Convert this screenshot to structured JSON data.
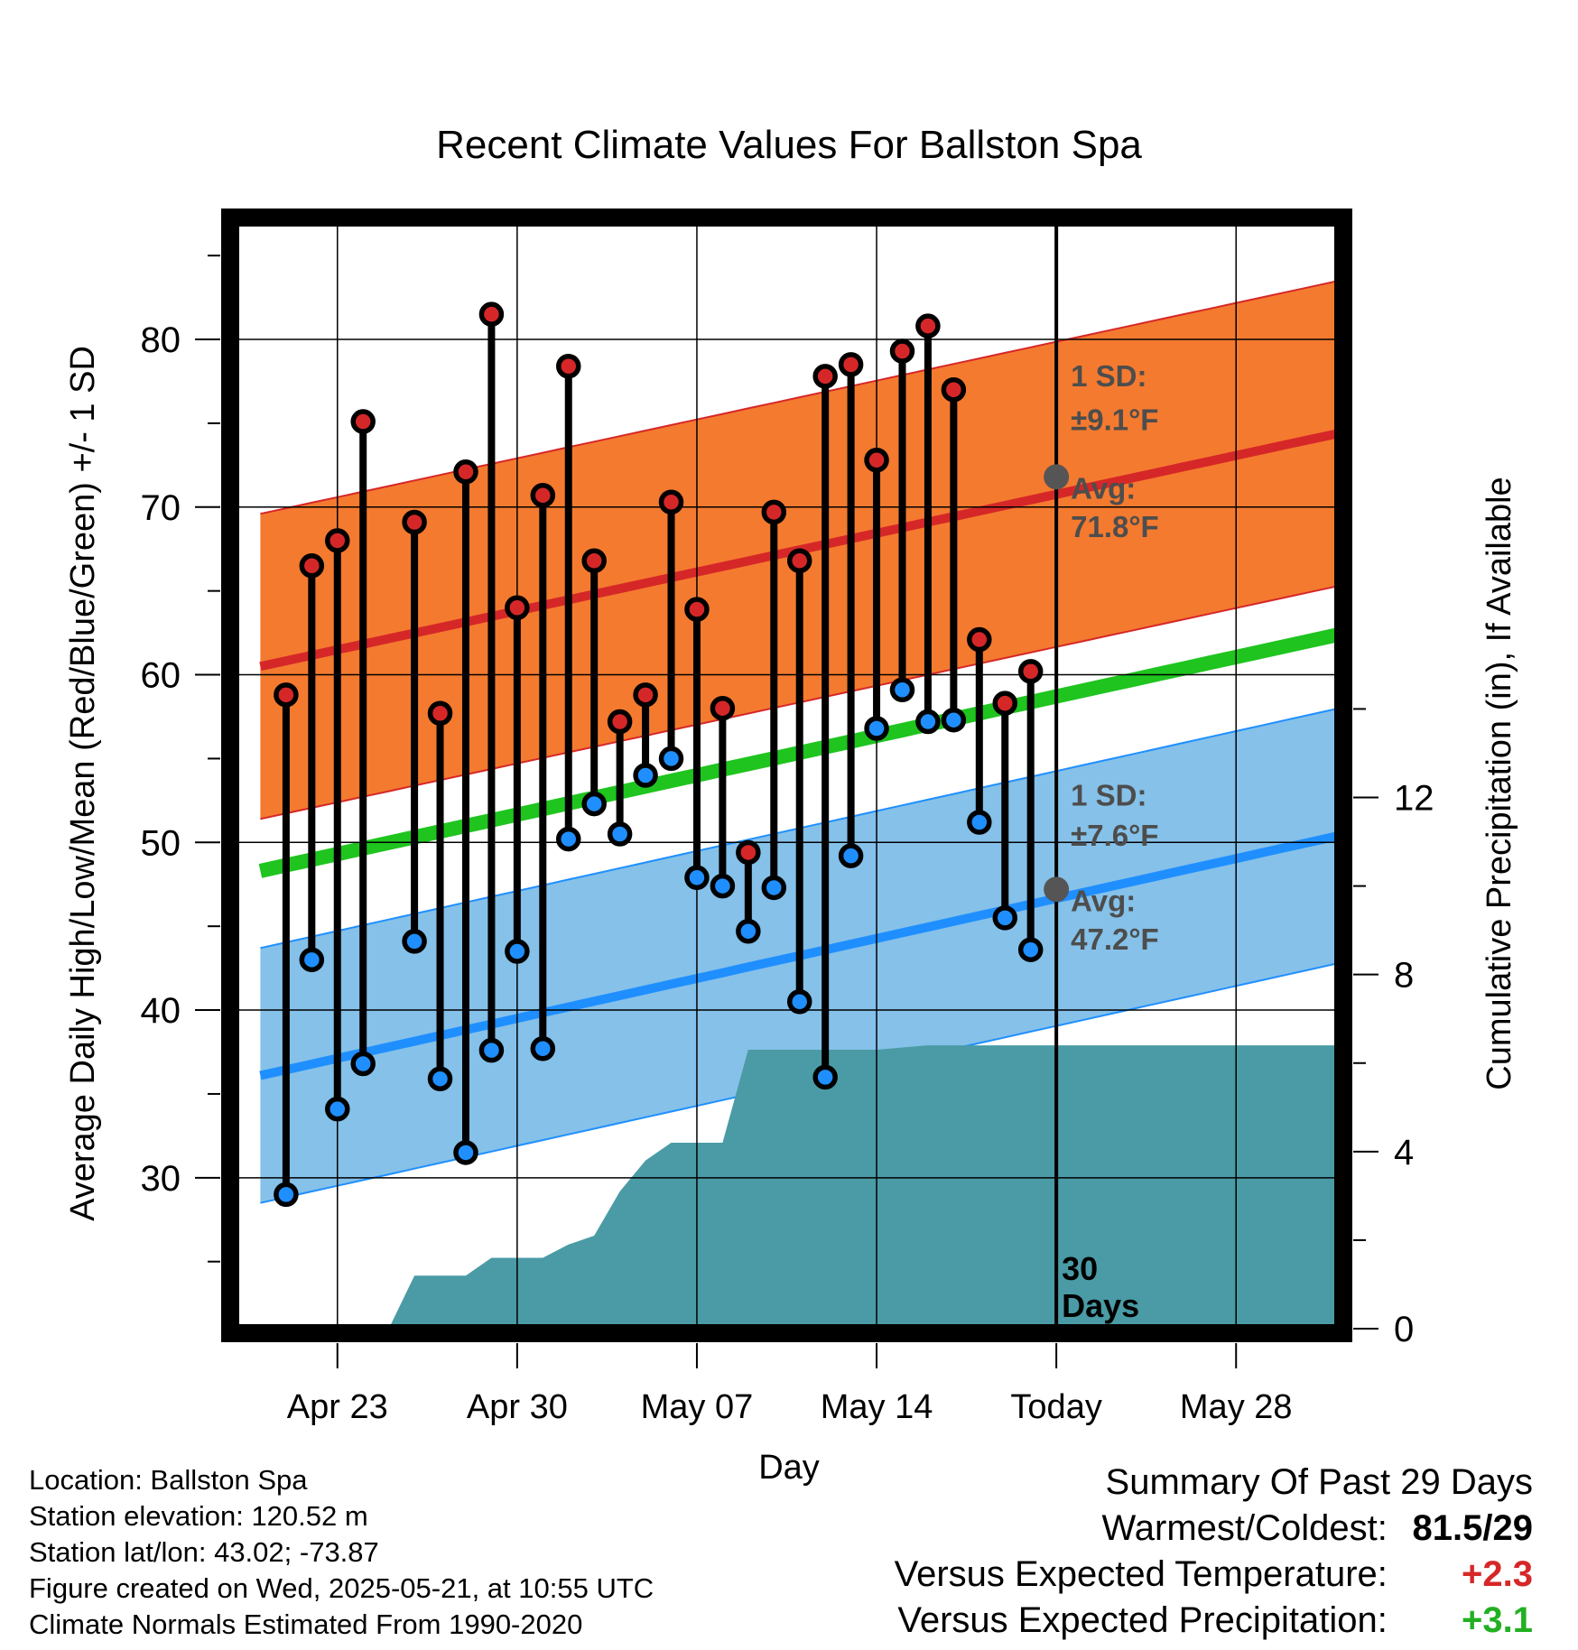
{
  "chart_data": {
    "type": "line",
    "title": "Recent Climate Values For Ballston Spa",
    "xlabel": "Day",
    "ylabel": "Average Daily High/Low/Mean (Red/Blue/Green) +/- 1 SD",
    "y2label": "Cumulative Precipitation (in), If Available",
    "x_tick_labels": [
      "Apr 23",
      "Apr 30",
      "May 07",
      "May 14",
      "Today",
      "May 28"
    ],
    "y_ticks": [
      30,
      40,
      50,
      60,
      70,
      80
    ],
    "y2_ticks": [
      0,
      4,
      8,
      12
    ],
    "ylim": [
      21,
      87
    ],
    "y2lim": [
      0,
      25
    ],
    "xlim": [
      "2025-04-19",
      "2025-06-01"
    ],
    "grid": true,
    "today": "2025-05-21",
    "period_label": "30 Days",
    "normals": {
      "start": "2025-04-20",
      "end": "2025-06-01",
      "high_mean": [
        60.5,
        74.4
      ],
      "high_sd": 9.1,
      "low_mean": [
        36.1,
        50.4
      ],
      "low_sd": 7.6,
      "mean": [
        48.3,
        62.4
      ]
    },
    "annotations": {
      "high_sd_label": "1 SD:",
      "high_sd_value": "±9.1°F",
      "high_avg_label": "Avg:",
      "high_avg_value": "71.8°F",
      "low_sd_label": "1 SD:",
      "low_sd_value": "±7.6°F",
      "low_avg_label": "Avg:",
      "low_avg_value": "47.2°F"
    },
    "today_high_avg": 71.8,
    "today_low_avg": 47.2,
    "series": [
      {
        "name": "High",
        "color": "#d62728",
        "x": [
          "2025-04-21",
          "2025-04-22",
          "2025-04-23",
          "2025-04-24",
          "2025-04-26",
          "2025-04-27",
          "2025-04-28",
          "2025-04-29",
          "2025-04-30",
          "2025-05-01",
          "2025-05-02",
          "2025-05-03",
          "2025-05-04",
          "2025-05-05",
          "2025-05-06",
          "2025-05-07",
          "2025-05-08",
          "2025-05-09",
          "2025-05-10",
          "2025-05-11",
          "2025-05-12",
          "2025-05-13",
          "2025-05-14",
          "2025-05-15",
          "2025-05-16",
          "2025-05-17",
          "2025-05-18",
          "2025-05-19",
          "2025-05-20"
        ],
        "values": [
          58.8,
          66.5,
          68.0,
          75.1,
          69.1,
          57.7,
          72.1,
          81.5,
          64.0,
          70.7,
          78.4,
          66.8,
          57.2,
          58.8,
          70.3,
          63.9,
          58.0,
          49.4,
          69.7,
          66.8,
          77.8,
          78.5,
          72.8,
          79.3,
          80.8,
          77.0,
          62.1,
          58.3,
          60.2
        ]
      },
      {
        "name": "Low",
        "color": "#1f8fff",
        "x": [
          "2025-04-21",
          "2025-04-22",
          "2025-04-23",
          "2025-04-24",
          "2025-04-26",
          "2025-04-27",
          "2025-04-28",
          "2025-04-29",
          "2025-04-30",
          "2025-05-01",
          "2025-05-02",
          "2025-05-03",
          "2025-05-04",
          "2025-05-05",
          "2025-05-06",
          "2025-05-07",
          "2025-05-08",
          "2025-05-09",
          "2025-05-10",
          "2025-05-11",
          "2025-05-12",
          "2025-05-13",
          "2025-05-14",
          "2025-05-15",
          "2025-05-16",
          "2025-05-17",
          "2025-05-18",
          "2025-05-19",
          "2025-05-20"
        ],
        "values": [
          29.0,
          43.0,
          34.1,
          36.8,
          44.1,
          35.9,
          31.5,
          37.6,
          43.5,
          37.7,
          50.2,
          52.3,
          50.5,
          54.0,
          55.0,
          47.9,
          47.4,
          44.7,
          47.3,
          40.5,
          36.0,
          49.2,
          56.8,
          59.1,
          57.2,
          57.3,
          51.2,
          45.5,
          43.6
        ]
      },
      {
        "name": "Precipitation",
        "color": "#4a9ba5",
        "x": [
          "2025-04-23",
          "2025-04-25",
          "2025-04-26",
          "2025-04-28",
          "2025-04-29",
          "2025-05-01",
          "2025-05-02",
          "2025-05-03",
          "2025-05-04",
          "2025-05-05",
          "2025-05-06",
          "2025-05-08",
          "2025-05-09",
          "2025-05-10",
          "2025-05-13",
          "2025-05-14",
          "2025-05-16",
          "2025-05-21",
          "2025-06-01"
        ],
        "values": [
          0.0,
          0.0,
          1.2,
          1.2,
          1.6,
          1.6,
          1.9,
          2.1,
          3.1,
          3.8,
          4.2,
          4.2,
          6.3,
          6.3,
          6.3,
          6.3,
          6.4,
          6.4,
          6.4
        ]
      }
    ]
  },
  "footer": {
    "location": "Location: Ballston Spa",
    "elevation": "Station elevation: 120.52 m",
    "latlon": "Station lat/lon: 43.02; -73.87",
    "created": "Figure created on Wed, 2025-05-21, at 10:55 UTC",
    "normals": "Climate Normals Estimated From 1990-2020"
  },
  "summary": {
    "title": "Summary Of Past 29 Days",
    "warm_cold_label": "Warmest/Coldest:",
    "warm_cold_value": "81.5/29",
    "temp_label": "Versus Expected Temperature:",
    "temp_value": "+2.3",
    "precip_label": "Versus Expected Precipitation:",
    "precip_value": "+3.1"
  }
}
